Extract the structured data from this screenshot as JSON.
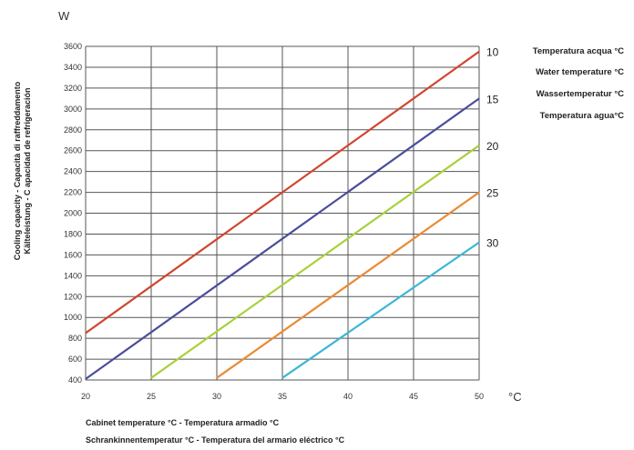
{
  "chart_data": {
    "type": "line",
    "y_unit": "W",
    "x_unit": "°C",
    "ylabel_lines": [
      "Cooling capacity - Capacità di raffreddamento",
      "Kälteleistung - C apacidad de refrigeración"
    ],
    "xlabel_lines": [
      "Cabinet temperature °C - Temperatura armadio °C",
      "Schrankinnentemperatur °C - Temperatura del armario eléctrico °C"
    ],
    "legend_title_lines": [
      "Temperatura acqua °C",
      "Water temperature °C",
      "Wassertemperatur °C",
      "Temperatura agua°C"
    ],
    "xlim": [
      20,
      50
    ],
    "ylim": [
      400,
      3600
    ],
    "x_ticks": [
      20,
      25,
      30,
      35,
      40,
      45,
      50
    ],
    "y_ticks": [
      400,
      600,
      800,
      1000,
      1200,
      1400,
      1600,
      1800,
      2000,
      2200,
      2400,
      2600,
      2800,
      3000,
      3200,
      3400,
      3600
    ],
    "grid": true,
    "series": [
      {
        "name": "10",
        "color": "#d2442e",
        "points": [
          [
            20,
            850
          ],
          [
            50,
            3550
          ]
        ]
      },
      {
        "name": "15",
        "color": "#4a4d9a",
        "points": [
          [
            20,
            410
          ],
          [
            50,
            3100
          ]
        ]
      },
      {
        "name": "20",
        "color": "#a9d13c",
        "points": [
          [
            25,
            420
          ],
          [
            50,
            2650
          ]
        ]
      },
      {
        "name": "25",
        "color": "#eb8a35",
        "points": [
          [
            30,
            420
          ],
          [
            50,
            2200
          ]
        ]
      },
      {
        "name": "30",
        "color": "#3ab7d6",
        "points": [
          [
            35,
            420
          ],
          [
            50,
            1720
          ]
        ]
      }
    ]
  }
}
